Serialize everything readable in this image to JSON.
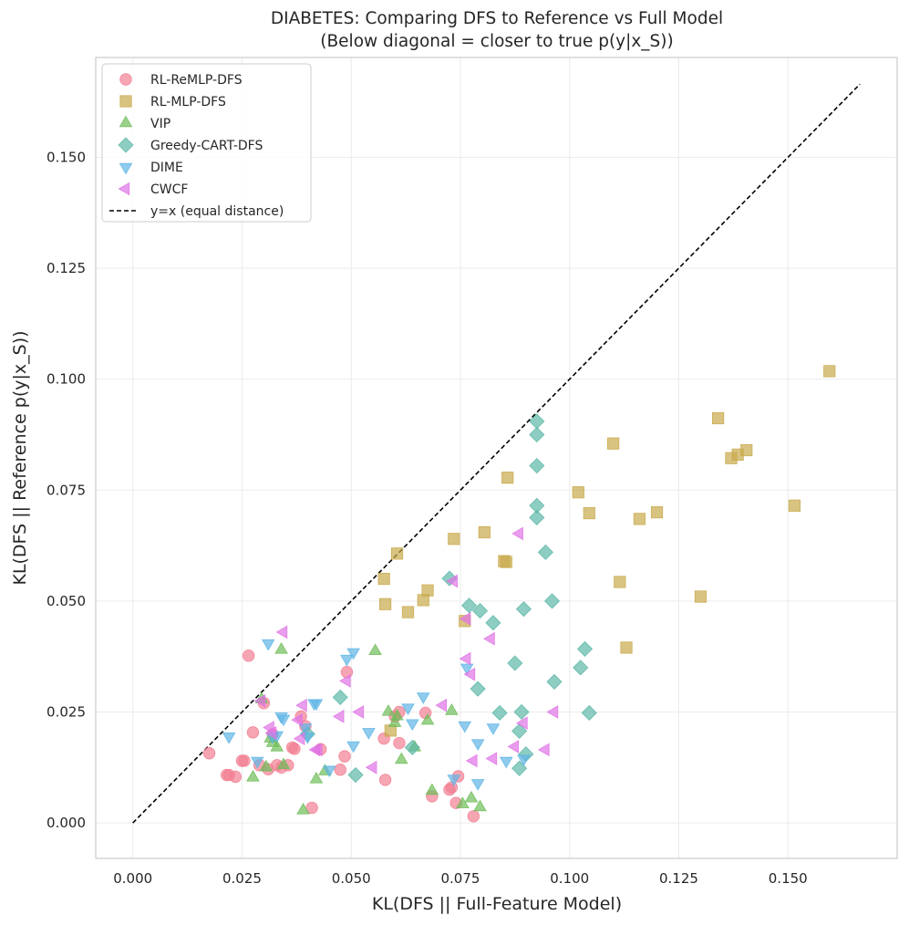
{
  "chart_data": {
    "type": "scatter",
    "title": "DIABETES: Comparing DFS to Reference vs Full Model",
    "subtitle": "(Below diagonal = closer to true p(y|x_S))",
    "xlabel": "KL(DFS || Full-Feature Model)",
    "ylabel": "KL(DFS || Reference p(y|x_S))",
    "xlim": [
      -0.0085,
      0.175
    ],
    "ylim": [
      -0.008,
      0.1725
    ],
    "xticks": [
      0.0,
      0.025,
      0.05,
      0.075,
      0.1,
      0.125,
      0.15
    ],
    "yticks": [
      0.0,
      0.025,
      0.05,
      0.075,
      0.1,
      0.125,
      0.15
    ],
    "xtick_labels": [
      "0.000",
      "0.025",
      "0.050",
      "0.075",
      "0.100",
      "0.125",
      "0.150"
    ],
    "ytick_labels": [
      "0.000",
      "0.025",
      "0.050",
      "0.075",
      "0.100",
      "0.125",
      "0.150"
    ],
    "grid": true,
    "legend_position": "top-left",
    "diagonal": {
      "label": "y=x (equal distance)",
      "from": 0.0,
      "to": 0.1665,
      "color": "#000000",
      "style": "dashed"
    },
    "series": [
      {
        "name": "RL-ReMLP-DFS",
        "marker": "circle",
        "color": "#f27f93",
        "points": [
          [
            0.0175,
            0.0157
          ],
          [
            0.0215,
            0.0108
          ],
          [
            0.022,
            0.0108
          ],
          [
            0.0235,
            0.0104
          ],
          [
            0.025,
            0.014
          ],
          [
            0.0255,
            0.014
          ],
          [
            0.0265,
            0.0377
          ],
          [
            0.0275,
            0.0204
          ],
          [
            0.029,
            0.013
          ],
          [
            0.03,
            0.027
          ],
          [
            0.031,
            0.0121
          ],
          [
            0.032,
            0.02
          ],
          [
            0.033,
            0.013
          ],
          [
            0.034,
            0.0125
          ],
          [
            0.0355,
            0.013
          ],
          [
            0.0365,
            0.017
          ],
          [
            0.037,
            0.0167
          ],
          [
            0.0385,
            0.024
          ],
          [
            0.0395,
            0.0218
          ],
          [
            0.041,
            0.0034
          ],
          [
            0.043,
            0.0166
          ],
          [
            0.0475,
            0.012
          ],
          [
            0.0485,
            0.015
          ],
          [
            0.049,
            0.034
          ],
          [
            0.0575,
            0.019
          ],
          [
            0.0578,
            0.0097
          ],
          [
            0.06,
            0.024
          ],
          [
            0.061,
            0.018
          ],
          [
            0.061,
            0.025
          ],
          [
            0.067,
            0.0248
          ],
          [
            0.0685,
            0.006
          ],
          [
            0.0725,
            0.0075
          ],
          [
            0.073,
            0.008
          ],
          [
            0.074,
            0.0045
          ],
          [
            0.0745,
            0.0105
          ],
          [
            0.078,
            0.0015
          ]
        ]
      },
      {
        "name": "RL-MLP-DFS",
        "marker": "square",
        "color": "#c9a94b",
        "points": [
          [
            0.0575,
            0.055
          ],
          [
            0.0578,
            0.0493
          ],
          [
            0.059,
            0.0208
          ],
          [
            0.0605,
            0.0607
          ],
          [
            0.063,
            0.0475
          ],
          [
            0.0665,
            0.0502
          ],
          [
            0.0675,
            0.0524
          ],
          [
            0.0735,
            0.064
          ],
          [
            0.076,
            0.0455
          ],
          [
            0.0805,
            0.0655
          ],
          [
            0.085,
            0.059
          ],
          [
            0.0855,
            0.0588
          ],
          [
            0.0858,
            0.0778
          ],
          [
            0.102,
            0.0745
          ],
          [
            0.1045,
            0.0698
          ],
          [
            0.11,
            0.0855
          ],
          [
            0.1115,
            0.0543
          ],
          [
            0.113,
            0.0395
          ],
          [
            0.116,
            0.0685
          ],
          [
            0.12,
            0.07
          ],
          [
            0.13,
            0.051
          ],
          [
            0.134,
            0.0912
          ],
          [
            0.137,
            0.0822
          ],
          [
            0.1385,
            0.083
          ],
          [
            0.1405,
            0.084
          ],
          [
            0.1515,
            0.0715
          ],
          [
            0.1595,
            0.1018
          ]
        ]
      },
      {
        "name": "VIP",
        "marker": "triangle-up",
        "color": "#6fbd5a",
        "points": [
          [
            0.0275,
            0.0102
          ],
          [
            0.0295,
            0.0278
          ],
          [
            0.0305,
            0.0125
          ],
          [
            0.0315,
            0.019
          ],
          [
            0.032,
            0.018
          ],
          [
            0.033,
            0.017
          ],
          [
            0.034,
            0.039
          ],
          [
            0.0345,
            0.013
          ],
          [
            0.039,
            0.0028
          ],
          [
            0.042,
            0.0098
          ],
          [
            0.044,
            0.0116
          ],
          [
            0.0555,
            0.0387
          ],
          [
            0.0585,
            0.025
          ],
          [
            0.06,
            0.0225
          ],
          [
            0.0605,
            0.024
          ],
          [
            0.0615,
            0.0142
          ],
          [
            0.0645,
            0.017
          ],
          [
            0.0675,
            0.023
          ],
          [
            0.0685,
            0.0072
          ],
          [
            0.073,
            0.0252
          ],
          [
            0.0755,
            0.0042
          ],
          [
            0.0775,
            0.0055
          ],
          [
            0.0795,
            0.0035
          ]
        ]
      },
      {
        "name": "Greedy-CART-DFS",
        "marker": "diamond",
        "color": "#5cb8a8",
        "points": [
          [
            0.04,
            0.02
          ],
          [
            0.0475,
            0.0283
          ],
          [
            0.051,
            0.0108
          ],
          [
            0.064,
            0.017
          ],
          [
            0.0725,
            0.0551
          ],
          [
            0.077,
            0.049
          ],
          [
            0.079,
            0.0302
          ],
          [
            0.0795,
            0.0478
          ],
          [
            0.0825,
            0.0451
          ],
          [
            0.084,
            0.0248
          ],
          [
            0.0875,
            0.036
          ],
          [
            0.0885,
            0.0123
          ],
          [
            0.0885,
            0.0207
          ],
          [
            0.089,
            0.025
          ],
          [
            0.0895,
            0.0482
          ],
          [
            0.09,
            0.0155
          ],
          [
            0.0925,
            0.0905
          ],
          [
            0.0925,
            0.0875
          ],
          [
            0.0925,
            0.0805
          ],
          [
            0.0925,
            0.0715
          ],
          [
            0.0925,
            0.0688
          ],
          [
            0.0945,
            0.061
          ],
          [
            0.096,
            0.05
          ],
          [
            0.0965,
            0.0318
          ],
          [
            0.1025,
            0.035
          ],
          [
            0.1035,
            0.0392
          ],
          [
            0.1045,
            0.0248
          ]
        ]
      },
      {
        "name": "DIME",
        "marker": "triangle-down",
        "color": "#5fb5e6",
        "points": [
          [
            0.022,
            0.0195
          ],
          [
            0.0285,
            0.014
          ],
          [
            0.031,
            0.0405
          ],
          [
            0.032,
            0.0195
          ],
          [
            0.033,
            0.0198
          ],
          [
            0.034,
            0.024
          ],
          [
            0.0345,
            0.0235
          ],
          [
            0.0395,
            0.0215
          ],
          [
            0.04,
            0.0195
          ],
          [
            0.0415,
            0.027
          ],
          [
            0.042,
            0.027
          ],
          [
            0.045,
            0.012
          ],
          [
            0.049,
            0.037
          ],
          [
            0.0505,
            0.0385
          ],
          [
            0.0505,
            0.0175
          ],
          [
            0.054,
            0.0205
          ],
          [
            0.063,
            0.026
          ],
          [
            0.064,
            0.0225
          ],
          [
            0.0665,
            0.0285
          ],
          [
            0.0735,
            0.01
          ],
          [
            0.076,
            0.022
          ],
          [
            0.0765,
            0.035
          ],
          [
            0.079,
            0.018
          ],
          [
            0.079,
            0.009
          ],
          [
            0.0825,
            0.0215
          ],
          [
            0.0855,
            0.014
          ],
          [
            0.0895,
            0.0145
          ]
        ]
      },
      {
        "name": "CWCF",
        "marker": "triangle-left",
        "color": "#e073e6",
        "points": [
          [
            0.0295,
            0.0275
          ],
          [
            0.0315,
            0.0215
          ],
          [
            0.032,
            0.0203
          ],
          [
            0.0345,
            0.043
          ],
          [
            0.038,
            0.0232
          ],
          [
            0.0385,
            0.019
          ],
          [
            0.039,
            0.0265
          ],
          [
            0.042,
            0.0165
          ],
          [
            0.0425,
            0.0165
          ],
          [
            0.0475,
            0.024
          ],
          [
            0.049,
            0.032
          ],
          [
            0.052,
            0.025
          ],
          [
            0.055,
            0.0125
          ],
          [
            0.071,
            0.0265
          ],
          [
            0.0735,
            0.0545
          ],
          [
            0.0765,
            0.046
          ],
          [
            0.0765,
            0.037
          ],
          [
            0.0775,
            0.0335
          ],
          [
            0.078,
            0.014
          ],
          [
            0.082,
            0.0415
          ],
          [
            0.0825,
            0.0145
          ],
          [
            0.0875,
            0.0172
          ],
          [
            0.0885,
            0.0652
          ],
          [
            0.0895,
            0.0225
          ],
          [
            0.0945,
            0.0165
          ],
          [
            0.0965,
            0.025
          ]
        ]
      }
    ]
  }
}
